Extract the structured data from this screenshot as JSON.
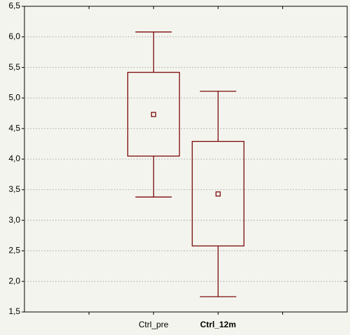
{
  "chart_data": {
    "type": "box",
    "categories": [
      null,
      "Ctrl_pre",
      "Ctrl_12m",
      null
    ],
    "whisker_high": [
      null,
      6.08,
      5.11,
      null
    ],
    "q3": [
      null,
      5.42,
      4.29,
      null
    ],
    "mean": [
      null,
      4.73,
      3.43,
      null
    ],
    "q1": [
      null,
      4.05,
      2.58,
      null
    ],
    "whisker_low": [
      null,
      3.38,
      1.75,
      null
    ],
    "color": "#7a0a0a",
    "ylim": [
      1.5,
      6.5
    ],
    "yticks": [
      {
        "value": 1.5,
        "label": "1,5"
      },
      {
        "value": 2.0,
        "label": "2,0"
      },
      {
        "value": 2.5,
        "label": "2,5"
      },
      {
        "value": 3.0,
        "label": "3,0"
      },
      {
        "value": 3.5,
        "label": "3,5"
      },
      {
        "value": 4.0,
        "label": "4,0"
      },
      {
        "value": 4.5,
        "label": "4,5"
      },
      {
        "value": 5.0,
        "label": "5,0"
      },
      {
        "value": 5.5,
        "label": "5,5"
      },
      {
        "value": 6.0,
        "label": "6,0"
      },
      {
        "value": 6.5,
        "label": "6,5"
      }
    ],
    "grid": true
  }
}
